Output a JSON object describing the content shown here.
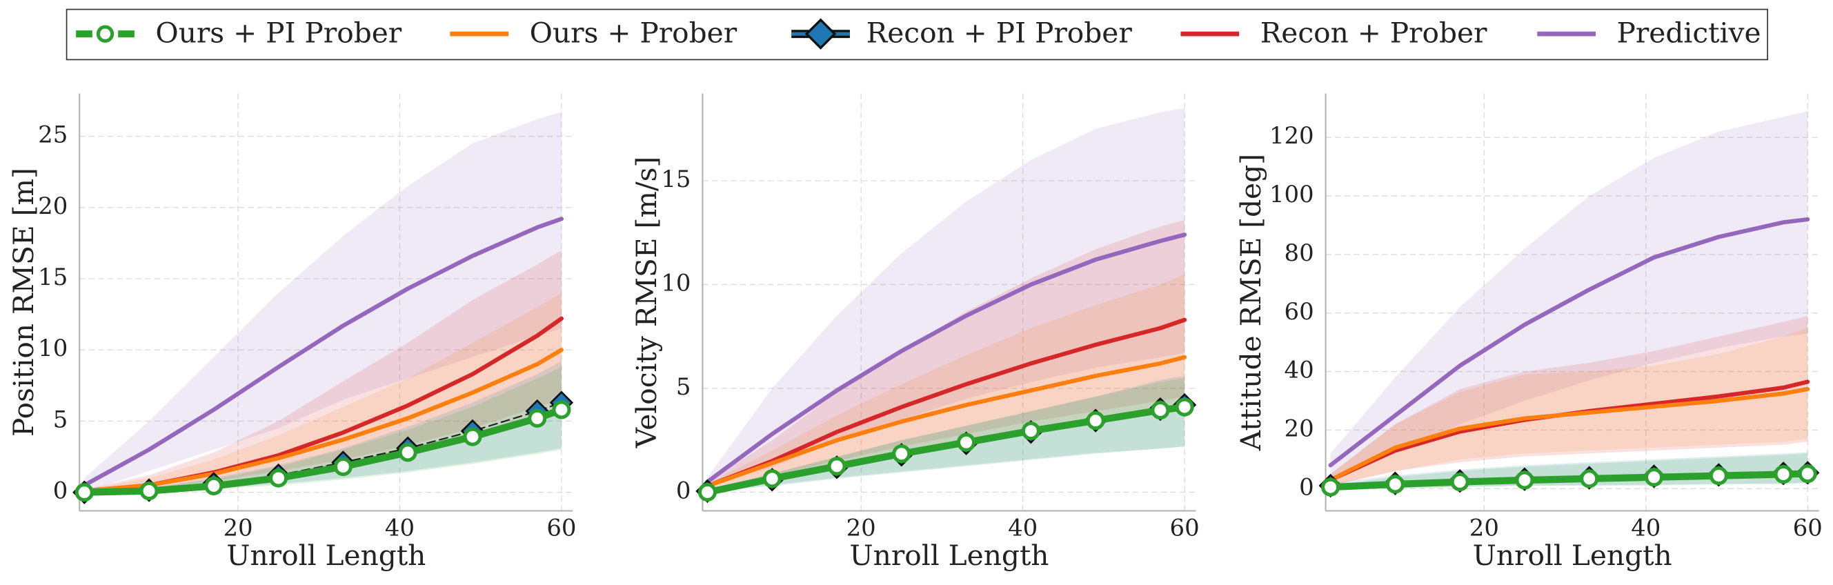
{
  "chart_data": [
    {
      "type": "line",
      "xlabel": "Unroll Length",
      "ylabel": "Position RMSE [m]",
      "x": [
        1,
        9,
        17,
        25,
        33,
        41,
        49,
        57,
        60
      ],
      "xlim": [
        0.4,
        61.4
      ],
      "xticks": [
        20,
        40,
        60
      ],
      "ylim": [
        -1.3,
        28
      ],
      "yticks": [
        0,
        5,
        10,
        15,
        20,
        25
      ],
      "grid": true,
      "legend": "upper center",
      "series": [
        {
          "name": "Ours + PI Prober",
          "color": "#2ca02c",
          "marker": "circle",
          "values": [
            0,
            0.1,
            0.45,
            1.0,
            1.8,
            2.8,
            3.9,
            5.2,
            5.8
          ],
          "lower": [
            0,
            0.05,
            0.2,
            0.5,
            0.9,
            1.4,
            2,
            2.7,
            3
          ],
          "upper": [
            0,
            0.3,
            0.9,
            1.8,
            3,
            4.4,
            6,
            8,
            8.8
          ]
        },
        {
          "name": "Ours + Prober",
          "color": "#ff7f0e",
          "values": [
            0.1,
            0.5,
            1.3,
            2.4,
            3.7,
            5.2,
            7.0,
            9.0,
            10.0
          ],
          "lower": [
            0,
            0.2,
            0.6,
            1.2,
            2,
            3,
            4,
            5.3,
            5.8
          ],
          "upper": [
            0.2,
            1,
            2.3,
            4,
            6,
            8,
            10.5,
            13,
            14
          ]
        },
        {
          "name": "Recon + PI Prober",
          "color": "#1f77b4",
          "marker": "diamond",
          "linestyle": "dashed",
          "values": [
            0,
            0.15,
            0.6,
            1.2,
            2.1,
            3.1,
            4.3,
            5.7,
            6.3
          ],
          "lower": [
            0,
            0.05,
            0.25,
            0.6,
            1,
            1.5,
            2.1,
            2.8,
            3.1
          ],
          "upper": [
            0,
            0.3,
            1,
            1.9,
            3.1,
            4.6,
            6.3,
            8.3,
            9.2
          ]
        },
        {
          "name": "Recon + Prober",
          "color": "#d62728",
          "values": [
            0.1,
            0.5,
            1.4,
            2.6,
            4.2,
            6.1,
            8.3,
            11.0,
            12.2
          ],
          "lower": [
            0,
            0.3,
            0.8,
            1.5,
            2.3,
            3.3,
            4.5,
            6,
            6.5
          ],
          "upper": [
            0.2,
            1.2,
            2.8,
            5,
            7.8,
            10.5,
            13.5,
            16,
            17
          ]
        },
        {
          "name": "Predictive",
          "color": "#9467bd",
          "values": [
            0.5,
            3.0,
            5.8,
            8.8,
            11.7,
            14.3,
            16.6,
            18.6,
            19.2
          ],
          "lower": [
            0,
            1.5,
            3,
            4.5,
            6.5,
            8,
            9.5,
            11,
            11.5
          ],
          "upper": [
            1,
            5,
            9.5,
            14,
            18,
            21.5,
            24.5,
            26.2,
            26.7
          ]
        }
      ]
    },
    {
      "type": "line",
      "xlabel": "Unroll Length",
      "ylabel": "Velocity RMSE [m/s]",
      "x": [
        1,
        9,
        17,
        25,
        33,
        41,
        49,
        57,
        60
      ],
      "xlim": [
        0.4,
        61.4
      ],
      "xticks": [
        20,
        40,
        60
      ],
      "ylim": [
        -0.9,
        19.2
      ],
      "yticks": [
        0,
        5,
        10,
        15
      ],
      "grid": true,
      "series": [
        {
          "name": "Ours + PI Prober",
          "color": "#2ca02c",
          "marker": "circle",
          "values": [
            0,
            0.65,
            1.25,
            1.85,
            2.4,
            2.95,
            3.45,
            3.95,
            4.1
          ],
          "lower": [
            0,
            0.35,
            0.7,
            1,
            1.3,
            1.6,
            1.9,
            2.1,
            2.2
          ],
          "upper": [
            0.1,
            0.9,
            1.7,
            2.5,
            3.2,
            3.9,
            4.6,
            5.3,
            5.5
          ]
        },
        {
          "name": "Ours + Prober",
          "color": "#ff7f0e",
          "values": [
            0.3,
            1.4,
            2.5,
            3.4,
            4.2,
            4.9,
            5.6,
            6.2,
            6.5
          ],
          "lower": [
            0.2,
            0.8,
            1.4,
            1.9,
            2.4,
            2.9,
            3.4,
            3.9,
            4.1
          ],
          "upper": [
            0.4,
            2,
            3.7,
            5.2,
            6.6,
            7.9,
            9,
            10,
            10.5
          ]
        },
        {
          "name": "Recon + PI Prober",
          "color": "#1f77b4",
          "marker": "diamond",
          "linestyle": "dashed",
          "values": [
            0.05,
            0.6,
            1.2,
            1.8,
            2.35,
            2.9,
            3.45,
            4.0,
            4.2
          ],
          "lower": [
            0,
            0.3,
            0.65,
            0.95,
            1.25,
            1.55,
            1.85,
            2.1,
            2.2
          ],
          "upper": [
            0.1,
            0.9,
            1.7,
            2.5,
            3.2,
            3.9,
            4.6,
            5.4,
            5.6
          ]
        },
        {
          "name": "Recon + Prober",
          "color": "#d62728",
          "values": [
            0.3,
            1.5,
            2.9,
            4.1,
            5.2,
            6.2,
            7.1,
            7.9,
            8.3
          ],
          "lower": [
            0.2,
            0.8,
            1.5,
            2.2,
            2.8,
            3.4,
            3.9,
            4.4,
            4.6
          ],
          "upper": [
            0.5,
            2.5,
            4.8,
            6.8,
            8.7,
            10.3,
            11.7,
            12.8,
            13.1
          ]
        },
        {
          "name": "Predictive",
          "color": "#9467bd",
          "values": [
            0.5,
            2.8,
            4.9,
            6.8,
            8.5,
            10.0,
            11.2,
            12.1,
            12.4
          ],
          "lower": [
            0.3,
            1.2,
            2.5,
            3.5,
            4.5,
            5.3,
            6,
            6.5,
            6.7
          ],
          "upper": [
            0.7,
            5,
            8.5,
            11.5,
            14,
            16,
            17.5,
            18.3,
            18.5
          ]
        }
      ]
    },
    {
      "type": "line",
      "xlabel": "Unroll Length",
      "ylabel": "Attitude RMSE [deg]",
      "x": [
        1,
        9,
        17,
        25,
        33,
        41,
        49,
        57,
        60
      ],
      "xlim": [
        0.4,
        61.4
      ],
      "xticks": [
        20,
        40,
        60
      ],
      "ylim": [
        -7.6,
        135
      ],
      "yticks": [
        0,
        20,
        40,
        60,
        80,
        100,
        120
      ],
      "grid": true,
      "series": [
        {
          "name": "Ours + PI Prober",
          "color": "#2ca02c",
          "marker": "circle",
          "values": [
            0.5,
            1.5,
            2.3,
            2.9,
            3.4,
            3.9,
            4.4,
            4.9,
            5.1
          ],
          "lower": [
            0,
            0,
            0.5,
            1,
            1,
            1,
            1.5,
            1.5,
            2
          ],
          "upper": [
            1,
            4,
            6,
            7.5,
            8.5,
            9.5,
            10.5,
            11.5,
            12
          ]
        },
        {
          "name": "Ours + Prober",
          "color": "#ff7f0e",
          "values": [
            3,
            14,
            20.5,
            24,
            26,
            28,
            30,
            32.5,
            34
          ],
          "lower": [
            1,
            6,
            10,
            12,
            13,
            14,
            15,
            16,
            17
          ],
          "upper": [
            5,
            22,
            33,
            39,
            40,
            42,
            46,
            52,
            55
          ]
        },
        {
          "name": "Recon + PI Prober",
          "color": "#1f77b4",
          "marker": "diamond",
          "linestyle": "dashed",
          "values": [
            1,
            1.8,
            2.6,
            3.2,
            3.7,
            4.2,
            4.7,
            5.2,
            5.4
          ],
          "lower": [
            0,
            0.2,
            0.6,
            1,
            1.2,
            1.4,
            1.6,
            1.8,
            2
          ],
          "upper": [
            2,
            4.5,
            6.5,
            8,
            9,
            10,
            11,
            12,
            12.5
          ]
        },
        {
          "name": "Recon + Prober",
          "color": "#d62728",
          "values": [
            3,
            13,
            19.5,
            23.5,
            26.5,
            29,
            31.5,
            34.5,
            36.5
          ],
          "lower": [
            1,
            6,
            9,
            11,
            12,
            13,
            14,
            15,
            16
          ],
          "upper": [
            5,
            22,
            34,
            40,
            43,
            47,
            52,
            57,
            59
          ]
        },
        {
          "name": "Predictive",
          "color": "#9467bd",
          "values": [
            8,
            25,
            42,
            56,
            68,
            79,
            86,
            91,
            92
          ],
          "lower": [
            4,
            12,
            22,
            30,
            37,
            43,
            48,
            52,
            53
          ],
          "upper": [
            12,
            38,
            62,
            82,
            100,
            113,
            122,
            127,
            129
          ]
        }
      ]
    }
  ]
}
